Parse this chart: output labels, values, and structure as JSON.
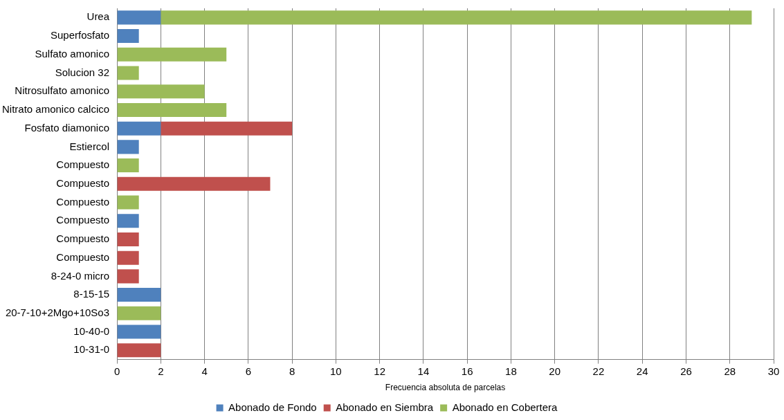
{
  "chart_data": {
    "type": "bar",
    "orientation": "horizontal",
    "stacked": true,
    "xlabel": "Frecuencia absoluta de parcelas",
    "categories": [
      "Urea",
      "Superfosfato",
      "Sulfato amonico",
      "Solucion 32",
      "Nitrosulfato amonico",
      "Nitrato amonico calcico",
      "Fosfato diamonico",
      "Estiercol",
      "Compuesto",
      "Compuesto",
      "Compuesto",
      "Compuesto",
      "Compuesto",
      "Compuesto",
      "8-24-0 micro",
      "8-15-15",
      "20-7-10+2Mgo+10So3",
      "10-40-0",
      "10-31-0"
    ],
    "series": [
      {
        "name": "Abonado de Fondo",
        "color": "#4f81bd",
        "values": [
          2,
          1,
          null,
          null,
          null,
          null,
          2,
          1,
          null,
          null,
          null,
          1,
          null,
          null,
          null,
          2,
          null,
          2,
          null
        ]
      },
      {
        "name": "Abonado en Siembra",
        "color": "#c0504d",
        "values": [
          null,
          null,
          null,
          null,
          null,
          null,
          6,
          null,
          null,
          7,
          null,
          null,
          1,
          1,
          1,
          null,
          null,
          null,
          2
        ]
      },
      {
        "name": "Abonado en Cobertera",
        "color": "#9bbb59",
        "values": [
          27,
          null,
          5,
          1,
          4,
          5,
          null,
          null,
          1,
          null,
          1,
          null,
          null,
          null,
          null,
          null,
          2,
          null,
          null
        ]
      }
    ],
    "xlim": [
      0,
      30
    ],
    "xticks": [
      0,
      2,
      4,
      6,
      8,
      10,
      12,
      14,
      16,
      18,
      20,
      22,
      24,
      26,
      28,
      30
    ],
    "grid": "x",
    "legend": "bottom"
  }
}
